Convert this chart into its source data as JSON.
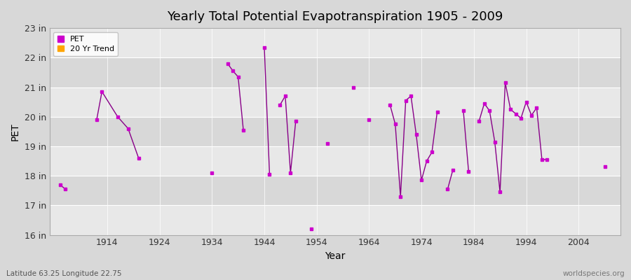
{
  "title": "Yearly Total Potential Evapotranspiration 1905 - 2009",
  "xlabel": "Year",
  "ylabel": "PET",
  "footnote_left": "Latitude 63.25 Longitude 22.75",
  "footnote_right": "worldspecies.org",
  "ylim": [
    16,
    23
  ],
  "yticks": [
    16,
    17,
    18,
    19,
    20,
    21,
    22,
    23
  ],
  "ytick_labels": [
    "16 in",
    "17 in",
    "18 in",
    "19 in",
    "20 in",
    "21 in",
    "22 in",
    "23 in"
  ],
  "xticks": [
    1914,
    1924,
    1934,
    1944,
    1954,
    1964,
    1974,
    1984,
    1994,
    2004
  ],
  "xlim": [
    1903,
    2012
  ],
  "pet_color": "#cc00cc",
  "trend_color": "#FFA500",
  "line_color": "#880088",
  "bg_color": "#d8d8d8",
  "plot_bg_light": "#e8e8e8",
  "plot_bg_dark": "#d8d8d8",
  "grid_color": "#ffffff",
  "legend_labels": [
    "PET",
    "20 Yr Trend"
  ],
  "data": {
    "years": [
      1905,
      1906,
      1912,
      1913,
      1916,
      1918,
      1920,
      1934,
      1937,
      1938,
      1939,
      1940,
      1944,
      1945,
      1947,
      1948,
      1949,
      1950,
      1953,
      1956,
      1961,
      1964,
      1968,
      1969,
      1970,
      1971,
      1972,
      1973,
      1974,
      1975,
      1976,
      1977,
      1979,
      1980,
      1982,
      1983,
      1985,
      1986,
      1987,
      1988,
      1989,
      1990,
      1991,
      1992,
      1993,
      1994,
      1995,
      1996,
      1997,
      1998,
      2009
    ],
    "values": [
      17.7,
      17.55,
      19.9,
      20.85,
      20.0,
      19.6,
      18.6,
      18.1,
      21.8,
      21.55,
      21.35,
      19.55,
      22.35,
      18.05,
      20.4,
      20.7,
      18.1,
      19.85,
      16.2,
      19.1,
      21.0,
      19.9,
      20.4,
      19.75,
      17.3,
      20.55,
      20.7,
      19.4,
      17.85,
      18.5,
      18.8,
      20.15,
      17.55,
      18.2,
      20.2,
      18.15,
      19.85,
      20.45,
      20.2,
      19.15,
      17.45,
      21.15,
      20.25,
      20.1,
      19.95,
      20.5,
      20.05,
      20.3,
      18.55,
      18.55,
      18.3
    ]
  },
  "segments": [
    [
      1905,
      1906
    ],
    [
      1912,
      1913,
      1916,
      1918,
      1920
    ],
    [
      1934
    ],
    [
      1937,
      1938,
      1939,
      1940
    ],
    [
      1944,
      1945
    ],
    [
      1947,
      1948,
      1949,
      1950
    ],
    [
      1953
    ],
    [
      1956
    ],
    [
      1961
    ],
    [
      1964
    ],
    [
      1968,
      1969,
      1970,
      1971,
      1972,
      1973,
      1974,
      1975,
      1976,
      1977
    ],
    [
      1979,
      1980
    ],
    [
      1982,
      1983
    ],
    [
      1985,
      1986,
      1987,
      1988,
      1989,
      1990,
      1991,
      1992,
      1993,
      1994,
      1995,
      1996,
      1997,
      1998
    ],
    [
      2009
    ]
  ]
}
